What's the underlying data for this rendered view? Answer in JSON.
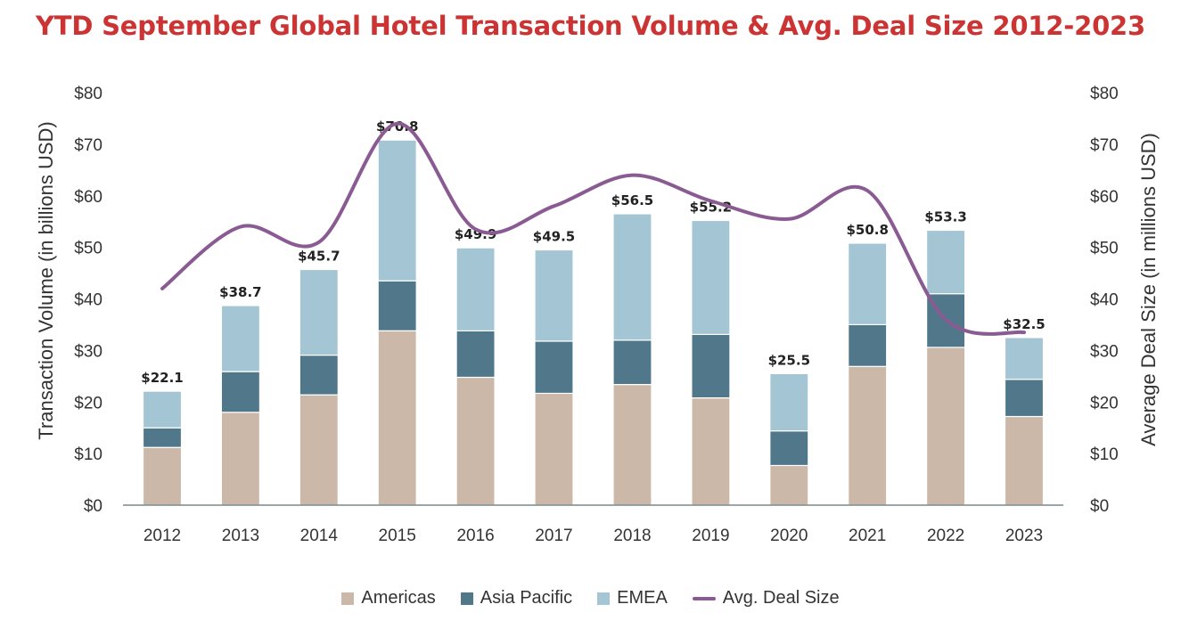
{
  "title": "YTD September Global Hotel Transaction Volume & Avg. Deal Size 2012-2023",
  "colors": {
    "americas": "#cbb8a8",
    "asia_pacific": "#50788a",
    "emea": "#a3c5d4",
    "avg_deal": "#8a5b93",
    "title": "#cc3333",
    "axis": "#7a8a8a"
  },
  "chart_data": {
    "type": "bar",
    "stacked": true,
    "categories": [
      "2012",
      "2013",
      "2014",
      "2015",
      "2016",
      "2017",
      "2018",
      "2019",
      "2020",
      "2021",
      "2022",
      "2023"
    ],
    "series": [
      {
        "name": "Americas",
        "values": [
          11.2,
          18.0,
          21.4,
          33.8,
          24.8,
          21.7,
          23.4,
          20.8,
          7.7,
          26.9,
          30.6,
          17.2
        ]
      },
      {
        "name": "Asia Pacific",
        "values": [
          3.8,
          7.9,
          7.7,
          9.7,
          9.0,
          10.1,
          8.6,
          12.3,
          6.7,
          8.1,
          10.4,
          7.2
        ]
      },
      {
        "name": "EMEA",
        "values": [
          7.1,
          12.8,
          16.6,
          27.3,
          16.1,
          17.7,
          24.5,
          22.1,
          11.1,
          15.8,
          12.3,
          8.1
        ]
      }
    ],
    "totals_labels": [
      "$22.1",
      "$38.7",
      "$45.7",
      "$70.8",
      "$49.9",
      "$49.5",
      "$56.5",
      "$55.2",
      "$25.5",
      "$50.8",
      "$53.3",
      "$32.5"
    ],
    "line_series": {
      "name": "Avg. Deal Size",
      "axis": "right",
      "values": [
        42.0,
        54.0,
        51.0,
        74.0,
        53.5,
        58.0,
        64.0,
        59.0,
        55.5,
        61.0,
        36.0,
        33.5
      ]
    },
    "ylabel_left": "Transaction Volume (in billions USD)",
    "ylabel_right": "Average Deal Size (in millions USD)",
    "ylim": [
      0,
      80
    ],
    "yticks": [
      "$0",
      "$10",
      "$20",
      "$30",
      "$40",
      "$50",
      "$60",
      "$70",
      "$80"
    ],
    "grid": false,
    "legend_position": "bottom"
  },
  "legend": {
    "americas": "Americas",
    "asia_pacific": "Asia Pacific",
    "emea": "EMEA",
    "avg_deal": "Avg. Deal Size"
  }
}
